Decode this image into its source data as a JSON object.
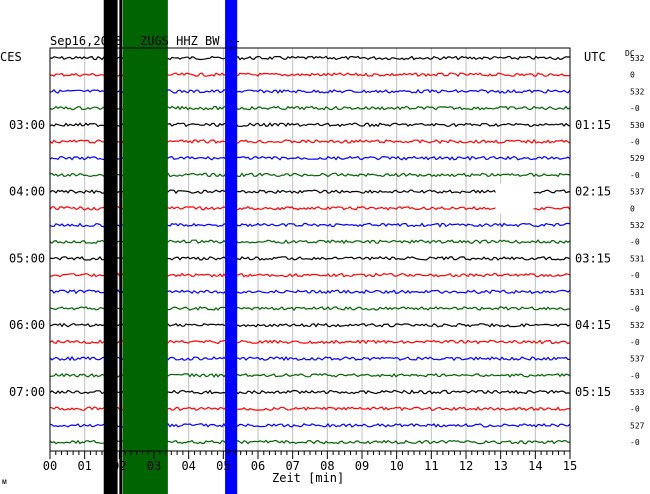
{
  "header": {
    "date": "Sep16,2013",
    "station": "ZUGS HHZ BW --",
    "left_zone": "CES",
    "right_zone": "UTC",
    "dc_label": "DC"
  },
  "axis": {
    "xlabel": "Zeit [min]",
    "ticks": [
      "00",
      "01",
      "02",
      "03",
      "04",
      "05",
      "06",
      "07",
      "08",
      "09",
      "10",
      "11",
      "12",
      "13",
      "14",
      "15"
    ],
    "left_times": [
      "03:00",
      "04:00",
      "05:00",
      "06:00",
      "07:00"
    ],
    "right_times": [
      "01:15",
      "02:15",
      "03:15",
      "04:15",
      "05:15"
    ]
  },
  "dc_values": [
    "532",
    "0",
    "532",
    "-0",
    "530",
    "-0",
    "529",
    "-0",
    "537",
    "0",
    "532",
    "-0",
    "531",
    "-0",
    "531",
    "-0",
    "532",
    "-0",
    "537",
    "-0",
    "533",
    "-0",
    "527",
    "-0"
  ],
  "footer_mark": "ᴍ",
  "chart_data": {
    "type": "line",
    "title": "Sep16,2013 ZUGS HHZ BW --",
    "xlabel": "Zeit [min]",
    "xlim": [
      0,
      15
    ],
    "trace_colors": [
      "#000000",
      "#ff0000",
      "#0000ff",
      "#006400"
    ],
    "trace_count": 24,
    "trace_baseline_dc": [
      532,
      0,
      532,
      0,
      530,
      0,
      529,
      0,
      537,
      0,
      532,
      0,
      531,
      0,
      531,
      0,
      532,
      0,
      537,
      0,
      533,
      0,
      527,
      0
    ],
    "events": [
      {
        "color": "#006400",
        "x_start_min": 2.1,
        "x_end_min": 3.4
      },
      {
        "color": "#0000ff",
        "x_start_min": 5.05,
        "x_end_min": 5.4
      },
      {
        "color": "#000000",
        "x_start_min": 1.55,
        "x_end_min": 1.95
      }
    ]
  }
}
